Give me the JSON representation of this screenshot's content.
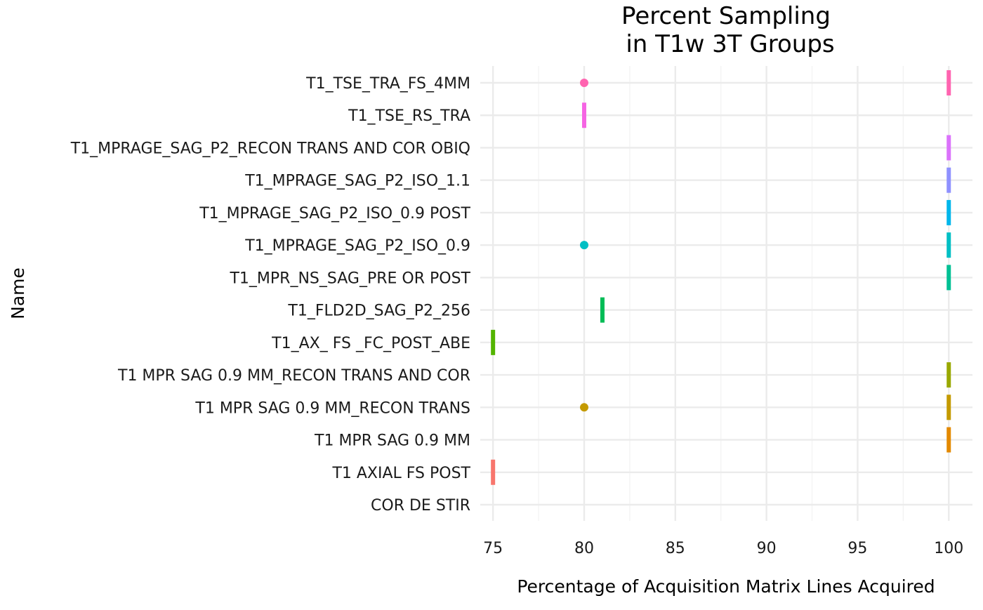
{
  "chart_data": {
    "type": "scatter",
    "title_lines": [
      "Percent Sampling",
      "in T1w 3T Groups"
    ],
    "xlabel": "Percentage of Acquisition Matrix Lines Acquired",
    "ylabel": "Name",
    "xlim": [
      74.3,
      101.3
    ],
    "xticks": [
      75,
      80,
      85,
      90,
      95,
      100
    ],
    "grid": true,
    "legend": "none",
    "categories": [
      "COR DE STIR",
      "T1 AXIAL FS POST",
      "T1 MPR SAG 0.9 MM",
      "T1 MPR SAG 0.9 MM_RECON TRANS",
      "T1 MPR SAG 0.9 MM_RECON TRANS AND COR",
      "T1_AX_ FS _FC_POST_ABE",
      "T1_FLD2D_SAG_P2_256",
      "T1_MPR_NS_SAG_PRE OR POST",
      "T1_MPRAGE_SAG_P2_ISO_0.9",
      "T1_MPRAGE_SAG_P2_ISO_0.9 POST",
      "T1_MPRAGE_SAG_P2_ISO_1.1",
      "T1_MPRAGE_SAG_P2_RECON TRANS AND COR OBIQ",
      "T1_TSE_RS_TRA",
      "T1_TSE_TRA_FS_4MM"
    ],
    "colors": [
      "#F8766D",
      "#F8766D",
      "#E38900",
      "#C49A00",
      "#99A800",
      "#53B400",
      "#00BC56",
      "#00C094",
      "#00BFC4",
      "#00B6EB",
      "#8F91FF",
      "#DB72FB",
      "#F564E3",
      "#FF64B0"
    ],
    "points": [
      {
        "category": "T1 AXIAL FS POST",
        "x": 75,
        "shape": "bar"
      },
      {
        "category": "T1 MPR SAG 0.9 MM",
        "x": 100,
        "shape": "bar"
      },
      {
        "category": "T1 MPR SAG 0.9 MM_RECON TRANS",
        "x": 80,
        "shape": "dot"
      },
      {
        "category": "T1 MPR SAG 0.9 MM_RECON TRANS",
        "x": 100,
        "shape": "bar"
      },
      {
        "category": "T1 MPR SAG 0.9 MM_RECON TRANS AND COR",
        "x": 100,
        "shape": "bar"
      },
      {
        "category": "T1_AX_ FS _FC_POST_ABE",
        "x": 75,
        "shape": "bar"
      },
      {
        "category": "T1_FLD2D_SAG_P2_256",
        "x": 81,
        "shape": "bar"
      },
      {
        "category": "T1_MPR_NS_SAG_PRE OR POST",
        "x": 100,
        "shape": "bar"
      },
      {
        "category": "T1_MPRAGE_SAG_P2_ISO_0.9",
        "x": 80,
        "shape": "dot"
      },
      {
        "category": "T1_MPRAGE_SAG_P2_ISO_0.9",
        "x": 100,
        "shape": "bar"
      },
      {
        "category": "T1_MPRAGE_SAG_P2_ISO_0.9 POST",
        "x": 100,
        "shape": "bar"
      },
      {
        "category": "T1_MPRAGE_SAG_P2_ISO_1.1",
        "x": 100,
        "shape": "bar"
      },
      {
        "category": "T1_MPRAGE_SAG_P2_RECON TRANS AND COR OBIQ",
        "x": 100,
        "shape": "bar"
      },
      {
        "category": "T1_TSE_RS_TRA",
        "x": 80,
        "shape": "bar"
      },
      {
        "category": "T1_TSE_TRA_FS_4MM",
        "x": 80,
        "shape": "dot"
      },
      {
        "category": "T1_TSE_TRA_FS_4MM",
        "x": 100,
        "shape": "bar"
      }
    ]
  }
}
